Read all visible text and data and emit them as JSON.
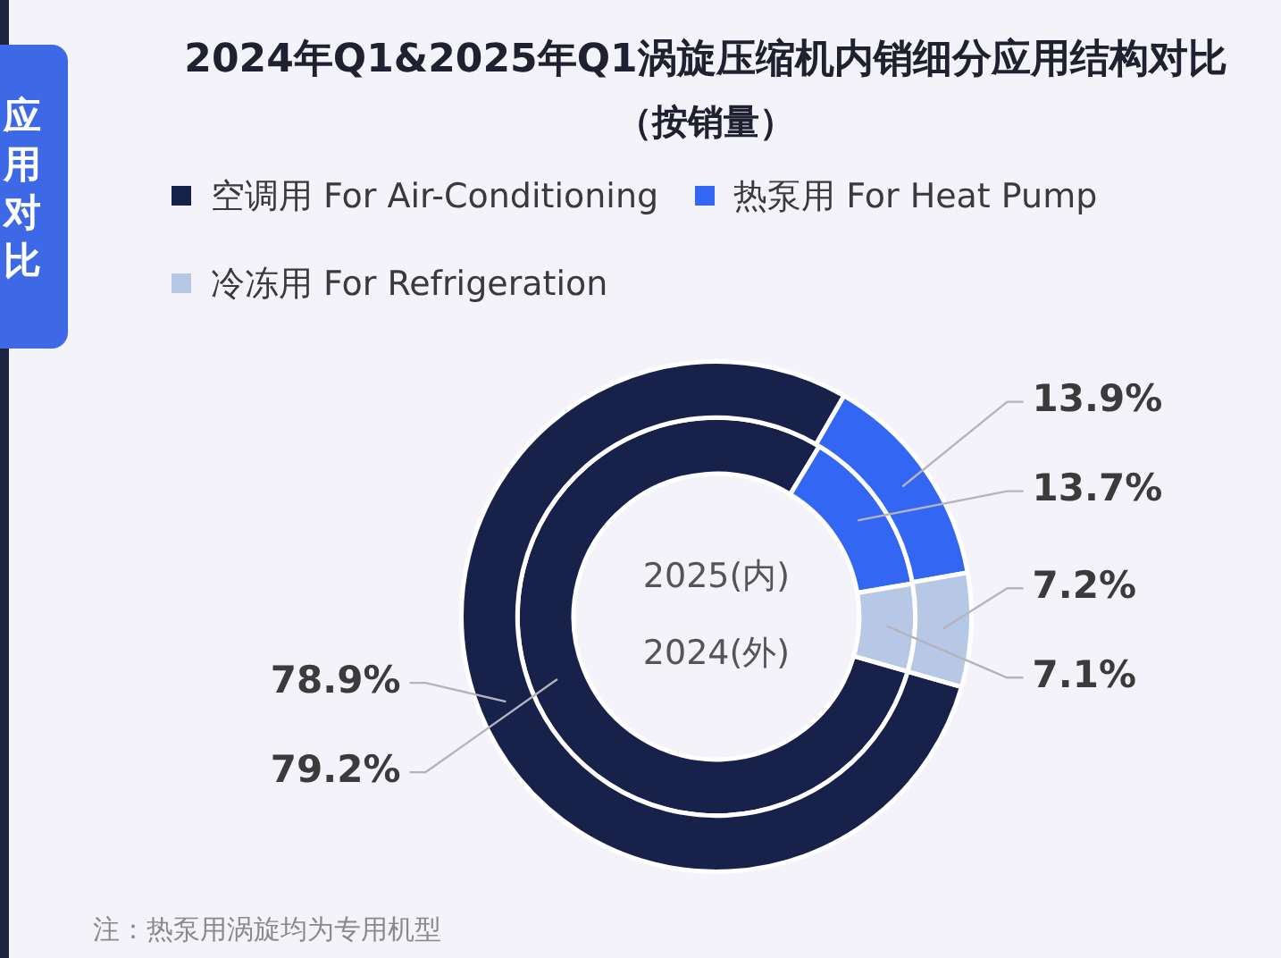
{
  "chart_data": {
    "type": "donut",
    "title": "2024年Q1&2025年Q1涡旋压缩机内销细分应用结构对比",
    "subtitle": "（按销量）",
    "categories": [
      "空调用 For Air-Conditioning",
      "热泵用 For Heat Pump",
      "冷冻用 For Refrigeration"
    ],
    "colors": [
      "#17214a",
      "#3366f2",
      "#b7c7e6"
    ],
    "series": [
      {
        "values": [
          78.9,
          13.9,
          7.2
        ],
        "value_labels": [
          "78.9%",
          "13.9%",
          "7.2%"
        ]
      },
      {
        "values": [
          79.2,
          13.7,
          7.1
        ],
        "value_labels": [
          "79.2%",
          "13.7%",
          "7.1%"
        ]
      }
    ],
    "legend": "top left",
    "annotations": [
      "应用对比",
      "2025(内)",
      "2024(外)",
      "注：热泵用涡旋均为专用机型"
    ]
  }
}
